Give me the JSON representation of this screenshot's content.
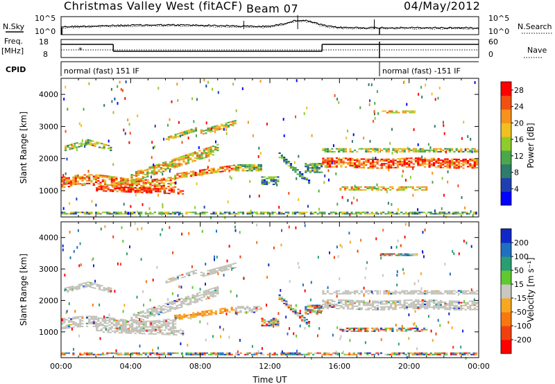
{
  "header": {
    "station": "Christmas Valley West (fitACF)",
    "beam": "Beam 07",
    "date": "04/May/2012"
  },
  "status_panels": {
    "nsky_label": "N.Sky",
    "nsearch_label": "N.Search",
    "noise_ticks": [
      "10^5",
      "10^0"
    ],
    "freq_label_1": "Freq.",
    "freq_label_2": "[MHz]",
    "freq_ticks": [
      "18",
      "8"
    ],
    "nave_label": "Nave",
    "nave_ticks": [
      "60",
      "0"
    ],
    "cpid_label": "CPID",
    "cpid_segments": [
      {
        "label": "normal (fast) 151 IF",
        "start_hour": 0.0,
        "end_hour": 18.3
      },
      {
        "label": "normal (fast) -151 IF",
        "start_hour": 18.3,
        "end_hour": 24.0
      }
    ],
    "freq_steps": [
      {
        "start_hour": 0.0,
        "end_hour": 3.0,
        "level": "high"
      },
      {
        "start_hour": 3.0,
        "end_hour": 15.0,
        "level": "low"
      },
      {
        "start_hour": 15.0,
        "end_hour": 24.0,
        "level": "high"
      }
    ]
  },
  "chart_data": [
    {
      "type": "heatmap",
      "panel": "power",
      "ylabel": "Slant Range [km]",
      "xlabel": "",
      "ylim": [
        180,
        4500
      ],
      "xlim_hours": [
        0,
        24
      ],
      "yticks": [
        "1000",
        "2000",
        "3000",
        "4000"
      ],
      "colorbar_label": "Power [dB]",
      "colorbar_ticks": [
        "4",
        "8",
        "12",
        "16",
        "20",
        "24",
        "28"
      ],
      "colorbar_range": [
        0,
        30
      ],
      "colors": [
        "#0000ff",
        "#1f3fb0",
        "#2e7c6a",
        "#4aa84a",
        "#8fcb2a",
        "#f0c020",
        "#f7921c",
        "#f25012",
        "#ff0000"
      ]
    },
    {
      "type": "heatmap",
      "panel": "velocity",
      "ylabel": "Slant Range [km]",
      "xlabel": "Time UT",
      "ylim": [
        180,
        4500
      ],
      "xlim_hours": [
        0,
        24
      ],
      "yticks": [
        "1000",
        "2000",
        "3000",
        "4000"
      ],
      "xticks": [
        "00:00",
        "04:00",
        "08:00",
        "12:00",
        "16:00",
        "20:00",
        "00:00"
      ],
      "colorbar_label": "Velocity [m s⁻¹]",
      "colorbar_ticks": [
        "200",
        "100",
        "50",
        "15",
        "-15",
        "-50",
        "-100",
        "-200"
      ],
      "colors": [
        "#1028c8",
        "#2070c0",
        "#2a9e70",
        "#60c830",
        "#c8c8c0",
        "#f8a820",
        "#f87810",
        "#f04010",
        "#ff0000"
      ],
      "ground_scatter_color": "#c0c0b8"
    }
  ]
}
